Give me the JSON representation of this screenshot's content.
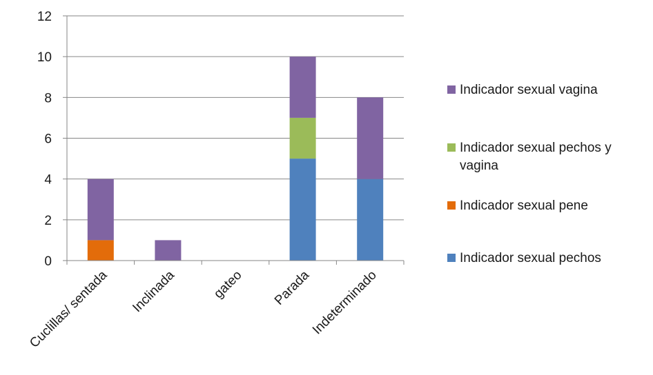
{
  "chart_data": {
    "type": "bar",
    "stacked": true,
    "categories": [
      "Cuclillas/ sentada",
      "Inclinada",
      "gateo",
      "Parada",
      "Indeterminado"
    ],
    "series": [
      {
        "name": "Indicador sexual pechos",
        "color": "#4f81bd",
        "values": [
          0,
          0,
          0,
          5,
          4
        ]
      },
      {
        "name": "Indicador sexual pene",
        "color": "#e36c0a",
        "values": [
          1,
          0,
          0,
          0,
          0
        ]
      },
      {
        "name": "Indicador sexual pechos y vagina",
        "color": "#9bbb59",
        "values": [
          0,
          0,
          0,
          2,
          0
        ]
      },
      {
        "name": "Indicador sexual vagina",
        "color": "#8064a2",
        "values": [
          3,
          1,
          0,
          3,
          4
        ]
      }
    ],
    "y_ticks": [
      "0",
      "2",
      "4",
      "6",
      "8",
      "10",
      "12"
    ],
    "ylim": [
      0,
      12
    ],
    "grid": true,
    "legend_position": "right",
    "legend_order": [
      "Indicador sexual vagina",
      "Indicador sexual pechos y vagina",
      "Indicador sexual pene",
      "Indicador sexual pechos"
    ]
  }
}
